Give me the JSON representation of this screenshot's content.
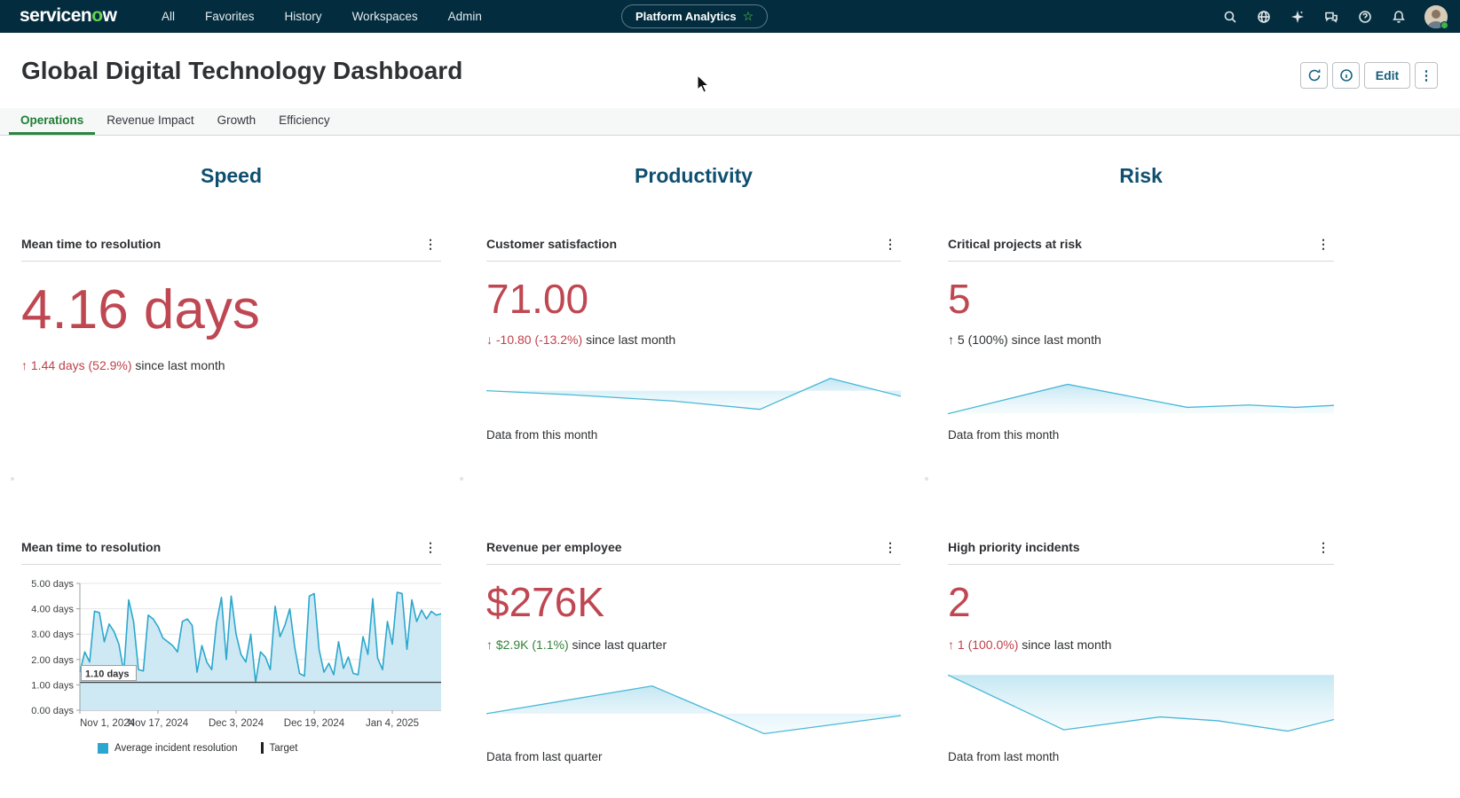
{
  "nav": {
    "logo_pre": "servicen",
    "logo_o": "o",
    "logo_post": "w",
    "items": [
      {
        "label": "All"
      },
      {
        "label": "Favorites"
      },
      {
        "label": "History"
      },
      {
        "label": "Workspaces"
      },
      {
        "label": "Admin"
      }
    ],
    "center_pill": "Platform Analytics",
    "pill_star": "☆",
    "icons": [
      "search-icon",
      "globe-icon",
      "sparkle-icon",
      "chat-icon",
      "help-icon",
      "bell-icon",
      "avatar"
    ]
  },
  "header": {
    "title": "Global Digital Technology Dashboard",
    "edit_label": "Edit",
    "more_label": "⋮"
  },
  "tabs": [
    {
      "label": "Operations",
      "active": true
    },
    {
      "label": "Revenue Impact",
      "active": false
    },
    {
      "label": "Growth",
      "active": false
    },
    {
      "label": "Efficiency",
      "active": false
    }
  ],
  "columns": [
    {
      "title": "Speed"
    },
    {
      "title": "Productivity"
    },
    {
      "title": "Risk"
    }
  ],
  "colors": {
    "nav_bg": "#032d3f",
    "brand_green": "#62d84e",
    "tab_active_green": "#1e7e34",
    "heading_teal": "#0e4f70",
    "metric_red": "#bf4752",
    "trend_red": "#bf4049",
    "trend_green": "#35823a",
    "trend_neutral": "#2e3033",
    "spark_line": "#49b8d8",
    "chart_line": "#2ba7cd",
    "chart_fill": "#cfe9f4"
  },
  "cards": [
    {
      "title": "Mean time to resolution",
      "kebab": "⋮",
      "value": "4.16 days",
      "trend_arrow": "↑",
      "trend_value": "1.44 days (52.9%)",
      "trend_suffix": "since last month",
      "trend_color": "#bf4049"
    },
    {
      "title": "Customer satisfaction",
      "kebab": "⋮",
      "value": "71.00",
      "trend_arrow": "↓",
      "trend_value": "-10.80 (-13.2%)",
      "trend_suffix": "since last month",
      "trend_color": "#bf4049",
      "caption": "Data from this month",
      "spark": [
        [
          0,
          0.62
        ],
        [
          0.2,
          0.52
        ],
        [
          0.45,
          0.36
        ],
        [
          0.66,
          0.15
        ],
        [
          0.83,
          0.93
        ],
        [
          1,
          0.48
        ]
      ]
    },
    {
      "title": "Critical projects at risk",
      "kebab": "⋮",
      "value": "5",
      "trend_arrow": "↑",
      "trend_value": "5 (100%)",
      "trend_suffix": "since last month",
      "trend_color": "#2e3033",
      "caption": "Data from this month",
      "spark": [
        [
          0,
          0.04
        ],
        [
          0.31,
          0.78
        ],
        [
          0.62,
          0.2
        ],
        [
          0.78,
          0.26
        ],
        [
          0.9,
          0.2
        ],
        [
          1,
          0.25
        ]
      ]
    },
    {
      "title": "Mean time to resolution",
      "kebab": "⋮"
    },
    {
      "title": "Revenue per employee",
      "kebab": "⋮",
      "value": "$276K",
      "trend_arrow": "↑",
      "trend_value": "$2.9K (1.1%)",
      "trend_suffix": "since last quarter",
      "trend_color": "#35823a",
      "caption": "Data from last quarter",
      "spark": [
        [
          0,
          0.35
        ],
        [
          0.4,
          0.78
        ],
        [
          0.67,
          0.04
        ],
        [
          1,
          0.32
        ]
      ]
    },
    {
      "title": "High priority incidents",
      "kebab": "⋮",
      "value": "2",
      "trend_arrow": "↑",
      "trend_value": "1 (100.0%)",
      "trend_suffix": "since last month",
      "trend_color": "#bf4049",
      "caption": "Data from last month",
      "spark": [
        [
          0,
          0.95
        ],
        [
          0.3,
          0.1
        ],
        [
          0.55,
          0.3
        ],
        [
          0.7,
          0.24
        ],
        [
          0.88,
          0.08
        ],
        [
          1,
          0.26
        ]
      ]
    }
  ],
  "chart_data": {
    "type": "line",
    "title": "Mean time to resolution",
    "xlabel": "",
    "ylabel": "days",
    "ylim": [
      0,
      5
    ],
    "grid": true,
    "legend_position": "bottom",
    "y_tick_labels": [
      "0.00 days",
      "1.00 days",
      "2.00 days",
      "3.00 days",
      "4.00 days",
      "5.00 days"
    ],
    "x_tick_labels": [
      "Nov 1, 2024",
      "Nov 17, 2024",
      "Dec 3, 2024",
      "Dec 19, 2024",
      "Jan 4, 2025"
    ],
    "x_tick_indices": [
      0,
      16,
      32,
      48,
      64
    ],
    "series": [
      {
        "name": "Average incident resolution",
        "values": [
          1.5,
          2.3,
          1.9,
          3.9,
          3.85,
          2.7,
          3.4,
          3.1,
          2.6,
          1.5,
          4.35,
          3.5,
          1.6,
          1.55,
          3.75,
          3.6,
          3.3,
          2.85,
          2.7,
          2.55,
          2.3,
          3.5,
          3.6,
          3.35,
          1.5,
          2.55,
          1.9,
          1.6,
          3.45,
          4.45,
          2.0,
          4.5,
          3.0,
          2.2,
          1.9,
          3.0,
          1.1,
          2.3,
          2.1,
          1.6,
          4.1,
          2.9,
          3.35,
          4.0,
          2.5,
          1.45,
          1.35,
          4.5,
          4.6,
          2.4,
          1.5,
          1.85,
          1.4,
          2.7,
          1.65,
          2.1,
          1.45,
          1.4,
          2.9,
          2.2,
          4.4,
          2.05,
          1.6,
          3.5,
          2.6,
          4.65,
          4.6,
          2.4,
          4.35,
          3.5,
          3.95,
          3.6,
          3.9,
          3.75,
          3.8
        ]
      }
    ],
    "target": {
      "name": "Target",
      "value": 1.1,
      "label": "1.10 days"
    },
    "legend": [
      "Average incident resolution",
      "Target"
    ]
  }
}
